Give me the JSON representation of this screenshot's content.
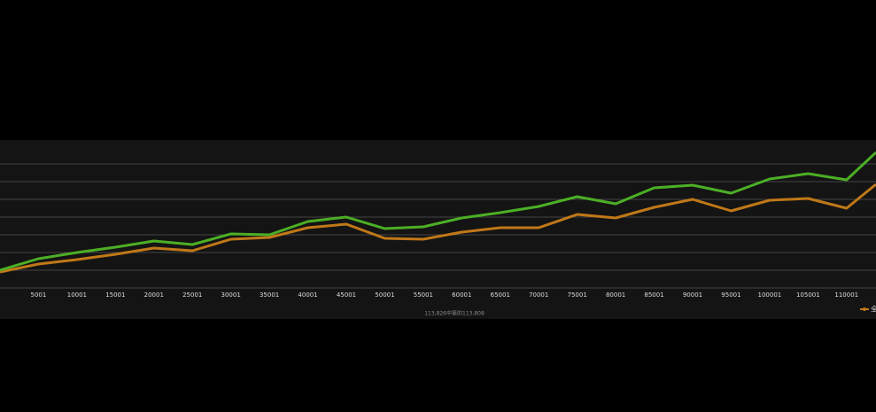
{
  "chart_data": {
    "type": "line",
    "x": [
      1,
      5001,
      10001,
      15001,
      20001,
      25001,
      30001,
      35001,
      40001,
      45001,
      50001,
      55001,
      60001,
      65001,
      70001,
      75001,
      80001,
      85001,
      90001,
      95001,
      100001,
      105001,
      110001,
      113826
    ],
    "series": [
      {
        "name": null,
        "color": "#4caf25",
        "values": [
          1.0,
          1.65,
          2.0,
          2.3,
          2.65,
          2.45,
          3.05,
          3.0,
          3.75,
          4.0,
          3.35,
          3.45,
          3.95,
          4.25,
          4.6,
          5.15,
          4.75,
          5.65,
          5.8,
          5.35,
          6.15,
          6.45,
          6.1,
          7.65
        ]
      },
      {
        "name": "全",
        "color": "#c07818",
        "values": [
          0.9,
          1.35,
          1.6,
          1.9,
          2.25,
          2.1,
          2.75,
          2.85,
          3.4,
          3.6,
          2.8,
          2.75,
          3.15,
          3.4,
          3.4,
          4.15,
          3.95,
          4.55,
          5.0,
          4.35,
          4.95,
          5.05,
          4.5,
          5.85
        ]
      }
    ],
    "xlim": [
      1,
      113826
    ],
    "xticks": [
      5001,
      10001,
      15001,
      20001,
      25001,
      30001,
      35001,
      40001,
      45001,
      50001,
      55001,
      60001,
      65001,
      70001,
      75001,
      80001,
      85001,
      90001,
      95001,
      100001,
      105001,
      110001
    ],
    "ylim": [
      0,
      8
    ],
    "yticks": [
      1,
      2,
      3,
      4,
      5,
      6,
      7
    ],
    "grid": true,
    "caption": "113,826中第的113,808",
    "legend": "bottom-right"
  }
}
